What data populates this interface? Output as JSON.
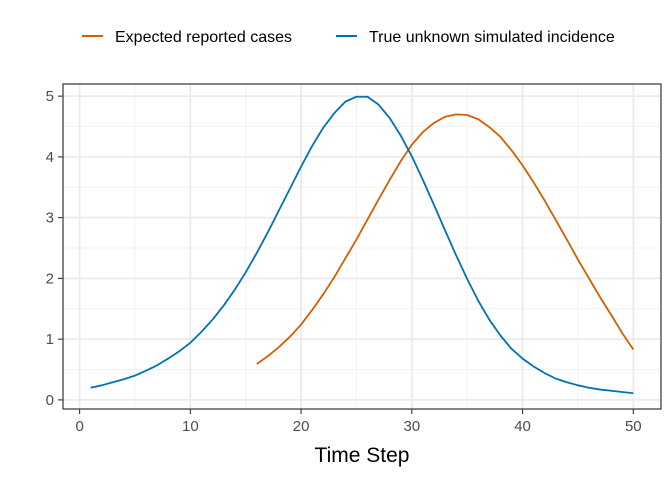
{
  "chart_data": {
    "type": "line",
    "title": "",
    "xlabel": "Time Step",
    "ylabel": "",
    "xlim": [
      -1.5,
      52.5
    ],
    "ylim": [
      -0.15,
      5.2
    ],
    "x_ticks": [
      0,
      10,
      20,
      30,
      40,
      50
    ],
    "y_ticks": [
      0,
      1,
      2,
      3,
      4,
      5
    ],
    "grid": true,
    "legend_position": "top",
    "series": [
      {
        "name": "Expected reported cases",
        "color": "#D55E00",
        "x": [
          16,
          17,
          18,
          19,
          20,
          21,
          22,
          23,
          24,
          25,
          26,
          27,
          28,
          29,
          30,
          31,
          32,
          33,
          34,
          35,
          36,
          37,
          38,
          39,
          40,
          41,
          42,
          43,
          44,
          45,
          46,
          47,
          48,
          49,
          50
        ],
        "y": [
          0.59,
          0.72,
          0.87,
          1.04,
          1.24,
          1.48,
          1.74,
          2.02,
          2.33,
          2.64,
          2.97,
          3.3,
          3.62,
          3.93,
          4.2,
          4.41,
          4.56,
          4.66,
          4.7,
          4.69,
          4.62,
          4.49,
          4.33,
          4.11,
          3.86,
          3.58,
          3.28,
          2.96,
          2.64,
          2.31,
          2.0,
          1.69,
          1.4,
          1.1,
          0.83
        ]
      },
      {
        "name": "True unknown simulated incidence",
        "color": "#0072B2",
        "x": [
          1,
          2,
          3,
          4,
          5,
          6,
          7,
          8,
          9,
          10,
          11,
          12,
          13,
          14,
          15,
          16,
          17,
          18,
          19,
          20,
          21,
          22,
          23,
          24,
          25,
          26,
          27,
          28,
          29,
          30,
          31,
          32,
          33,
          34,
          35,
          36,
          37,
          38,
          39,
          40,
          41,
          42,
          43,
          44,
          45,
          46,
          47,
          48,
          49,
          50
        ],
        "y": [
          0.2,
          0.24,
          0.29,
          0.34,
          0.4,
          0.48,
          0.57,
          0.68,
          0.8,
          0.94,
          1.12,
          1.32,
          1.55,
          1.81,
          2.1,
          2.42,
          2.76,
          3.12,
          3.48,
          3.84,
          4.18,
          4.48,
          4.72,
          4.91,
          4.99,
          4.99,
          4.86,
          4.64,
          4.35,
          4.01,
          3.62,
          3.21,
          2.79,
          2.38,
          1.99,
          1.63,
          1.32,
          1.06,
          0.84,
          0.68,
          0.55,
          0.44,
          0.35,
          0.29,
          0.24,
          0.2,
          0.17,
          0.15,
          0.13,
          0.11
        ]
      }
    ]
  }
}
